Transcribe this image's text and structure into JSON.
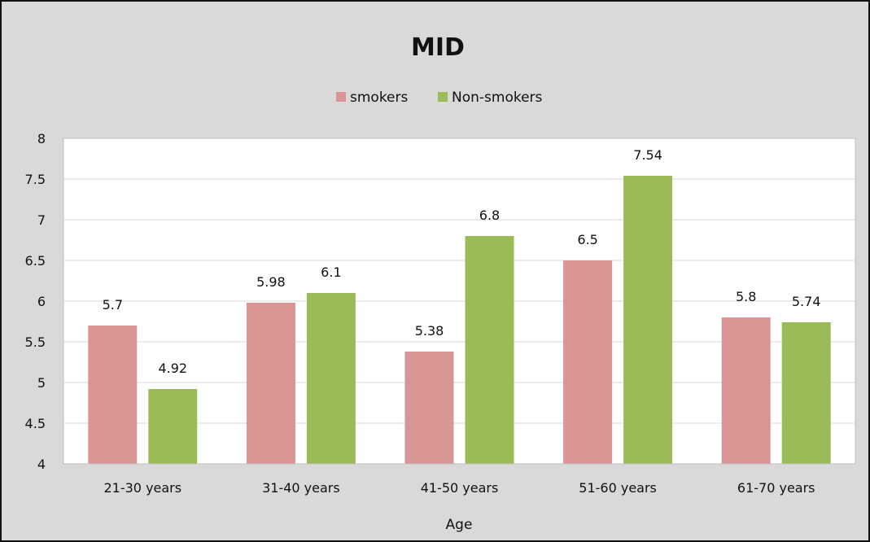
{
  "chart_data": {
    "type": "bar",
    "title": "MID",
    "xlabel": "Age",
    "ylabel": "",
    "categories": [
      "21-30 years",
      "31-40 years",
      "41-50 years",
      "51-60 years",
      "61-70 years"
    ],
    "series": [
      {
        "name": "smokers",
        "values": [
          5.7,
          5.98,
          5.38,
          6.5,
          5.8
        ],
        "labels": [
          "5.7",
          "5.98",
          "5.38",
          "6.5",
          "5.8"
        ],
        "color": "#d99594"
      },
      {
        "name": "Non-smokers",
        "values": [
          4.92,
          6.1,
          6.8,
          7.54,
          5.74
        ],
        "labels": [
          "4.92",
          "6.1",
          "6.8",
          "7.54",
          "5.74"
        ],
        "color": "#9bbb59"
      }
    ],
    "ylim": [
      4,
      8
    ],
    "yticks": [
      "4",
      "4.5",
      "5",
      "5.5",
      "6",
      "6.5",
      "7",
      "7.5",
      "8"
    ],
    "grid": true,
    "legend_position": "top-center",
    "plot_background": "#ffffff",
    "chart_background": "#d9d9d9"
  }
}
